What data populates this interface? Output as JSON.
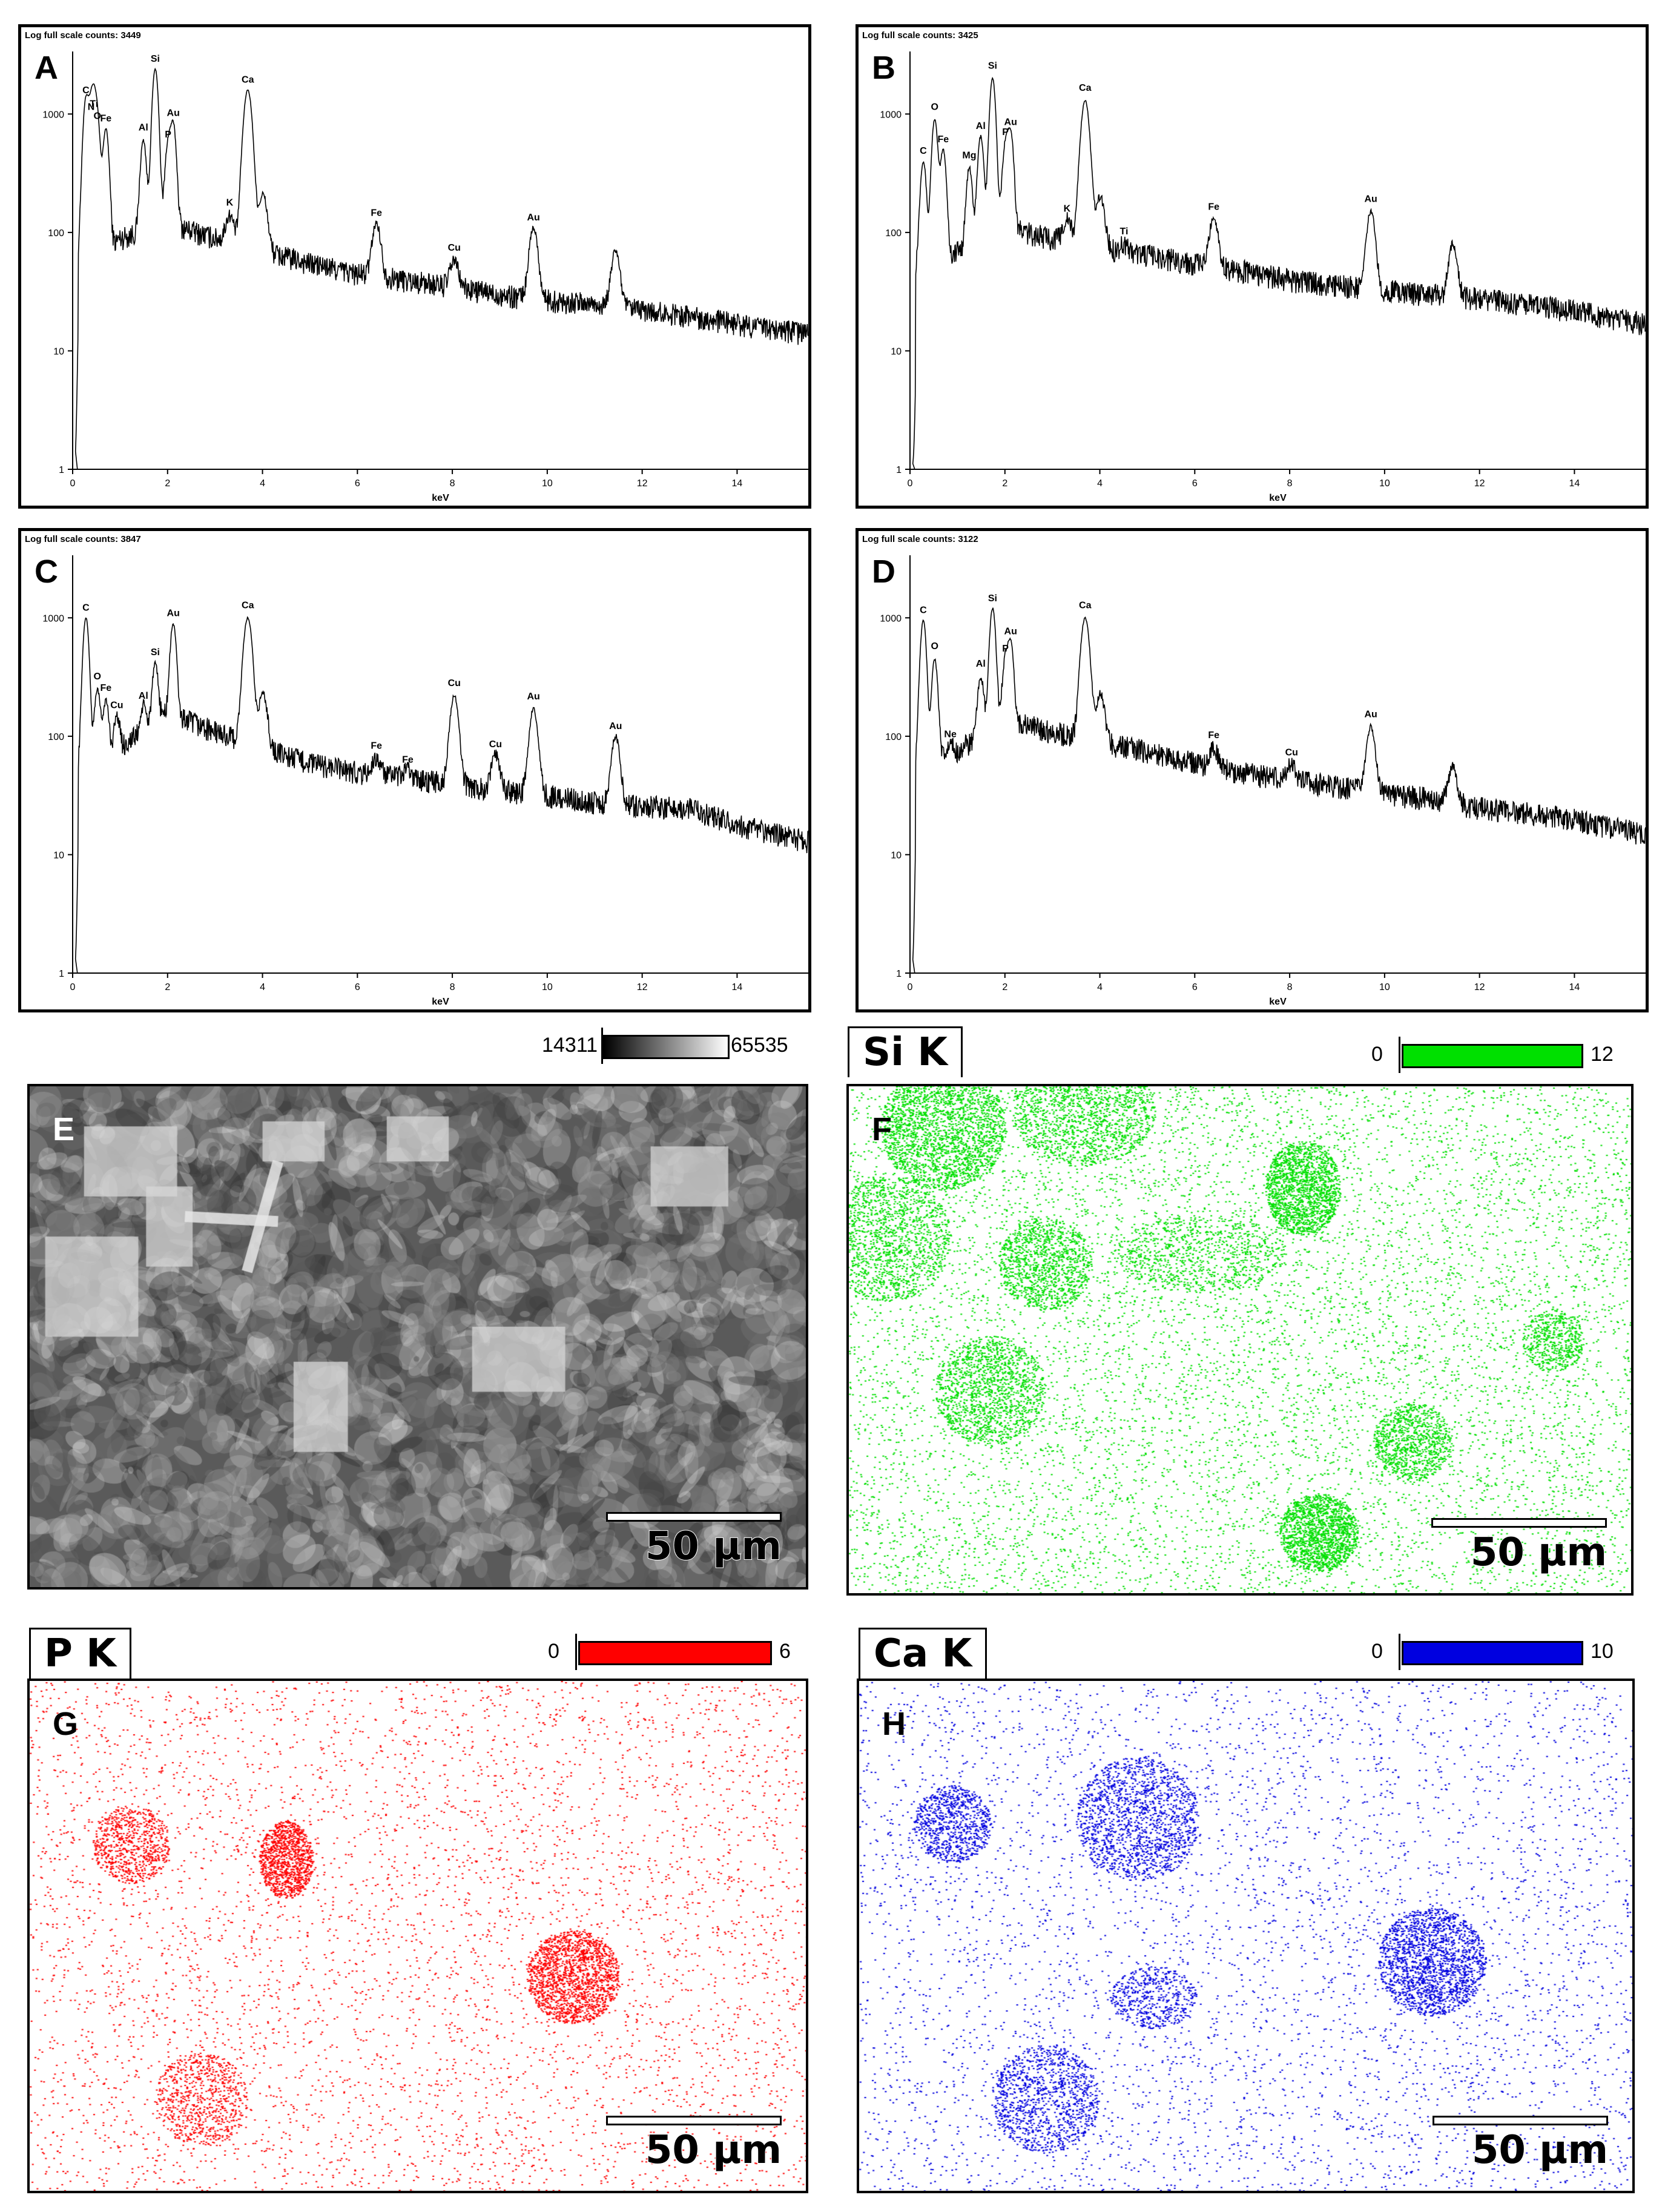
{
  "spectra": {
    "axis_header": "Log full scale counts:",
    "xlabel": "keV",
    "y_ticks": [
      "1",
      "10",
      "100",
      "1000"
    ],
    "x_ticks": [
      "0",
      "2",
      "4",
      "6",
      "8",
      "10",
      "12",
      "14"
    ]
  },
  "chart_data": [
    {
      "type": "line",
      "panel": "A",
      "title": "Log full scale counts: 3449",
      "xlabel": "keV",
      "ylabel": "",
      "y_scale": "log",
      "xlim": [
        0,
        15.5
      ],
      "ylim": [
        1,
        3449
      ],
      "baseline": [
        [
          0.5,
          60
        ],
        [
          1,
          90
        ],
        [
          2,
          120
        ],
        [
          3,
          90
        ],
        [
          4,
          70
        ],
        [
          5,
          55
        ],
        [
          6,
          45
        ],
        [
          7,
          40
        ],
        [
          8,
          35
        ],
        [
          9,
          30
        ],
        [
          10,
          27
        ],
        [
          11,
          25
        ],
        [
          12,
          22
        ],
        [
          13,
          20
        ],
        [
          14,
          17
        ],
        [
          15.5,
          14
        ]
      ],
      "peaks": [
        {
          "label": "C",
          "x": 0.28,
          "y": 1300
        },
        {
          "label": "O",
          "x": 0.52,
          "y": 750
        },
        {
          "label": "Ti",
          "x": 0.45,
          "y": 1000
        },
        {
          "label": "N",
          "x": 0.39,
          "y": 900
        },
        {
          "label": "Fe",
          "x": 0.7,
          "y": 750
        },
        {
          "label": "Al",
          "x": 1.49,
          "y": 600
        },
        {
          "label": "Si",
          "x": 1.74,
          "y": 2400
        },
        {
          "label": "Au",
          "x": 2.12,
          "y": 800
        },
        {
          "label": "P",
          "x": 2.01,
          "y": 550
        },
        {
          "label": "K",
          "x": 3.31,
          "y": 140
        },
        {
          "label": "Ca",
          "x": 3.69,
          "y": 1600
        },
        {
          "label": "",
          "x": 4.01,
          "y": 210
        },
        {
          "label": "Fe",
          "x": 6.4,
          "y": 120
        },
        {
          "label": "Cu",
          "x": 8.04,
          "y": 58
        },
        {
          "label": "Au",
          "x": 9.71,
          "y": 110
        },
        {
          "label": "",
          "x": 11.44,
          "y": 70
        }
      ]
    },
    {
      "type": "line",
      "panel": "B",
      "title": "Log full scale counts: 3425",
      "xlabel": "keV",
      "ylabel": "",
      "y_scale": "log",
      "xlim": [
        0,
        15.5
      ],
      "ylim": [
        1,
        3425
      ],
      "baseline": [
        [
          0.5,
          50
        ],
        [
          1,
          70
        ],
        [
          2,
          110
        ],
        [
          3,
          90
        ],
        [
          4,
          75
        ],
        [
          5,
          65
        ],
        [
          6,
          55
        ],
        [
          7,
          48
        ],
        [
          8,
          40
        ],
        [
          9,
          36
        ],
        [
          10,
          33
        ],
        [
          11,
          30
        ],
        [
          12,
          28
        ],
        [
          13,
          25
        ],
        [
          14,
          22
        ],
        [
          15.5,
          17
        ]
      ],
      "peaks": [
        {
          "label": "C",
          "x": 0.28,
          "y": 400
        },
        {
          "label": "O",
          "x": 0.52,
          "y": 900
        },
        {
          "label": "Fe",
          "x": 0.7,
          "y": 500
        },
        {
          "label": "Mg",
          "x": 1.25,
          "y": 350
        },
        {
          "label": "Al",
          "x": 1.49,
          "y": 650
        },
        {
          "label": "Si",
          "x": 1.74,
          "y": 2000
        },
        {
          "label": "Au",
          "x": 2.12,
          "y": 700
        },
        {
          "label": "P",
          "x": 2.01,
          "y": 550
        },
        {
          "label": "K",
          "x": 3.31,
          "y": 130
        },
        {
          "label": "Ca",
          "x": 3.69,
          "y": 1300
        },
        {
          "label": "",
          "x": 4.01,
          "y": 200
        },
        {
          "label": "Ti",
          "x": 4.51,
          "y": 80
        },
        {
          "label": "Fe",
          "x": 6.4,
          "y": 135
        },
        {
          "label": "Au",
          "x": 9.71,
          "y": 150
        },
        {
          "label": "",
          "x": 11.44,
          "y": 80
        }
      ]
    },
    {
      "type": "line",
      "panel": "C",
      "title": "Log full scale counts: 3847",
      "xlabel": "keV",
      "ylabel": "",
      "y_scale": "log",
      "xlim": [
        0,
        15.5
      ],
      "ylim": [
        1,
        3847
      ],
      "baseline": [
        [
          0.5,
          50
        ],
        [
          1,
          80
        ],
        [
          2,
          160
        ],
        [
          3,
          110
        ],
        [
          4,
          80
        ],
        [
          5,
          60
        ],
        [
          6,
          50
        ],
        [
          7,
          45
        ],
        [
          8,
          40
        ],
        [
          9,
          35
        ],
        [
          10,
          32
        ],
        [
          11,
          28
        ],
        [
          12,
          26
        ],
        [
          13,
          25
        ],
        [
          14,
          18
        ],
        [
          15.5,
          13
        ]
      ],
      "peaks": [
        {
          "label": "C",
          "x": 0.28,
          "y": 1000
        },
        {
          "label": "O",
          "x": 0.52,
          "y": 250
        },
        {
          "label": "Cu",
          "x": 0.93,
          "y": 150
        },
        {
          "label": "Fe",
          "x": 0.7,
          "y": 200
        },
        {
          "label": "Al",
          "x": 1.49,
          "y": 180
        },
        {
          "label": "Si",
          "x": 1.74,
          "y": 400
        },
        {
          "label": "Au",
          "x": 2.12,
          "y": 900
        },
        {
          "label": "Ca",
          "x": 3.69,
          "y": 1000
        },
        {
          "label": "",
          "x": 4.01,
          "y": 230
        },
        {
          "label": "Fe",
          "x": 6.4,
          "y": 65
        },
        {
          "label": "Fe",
          "x": 7.06,
          "y": 52
        },
        {
          "label": "Cu",
          "x": 8.04,
          "y": 220
        },
        {
          "label": "Cu",
          "x": 8.91,
          "y": 70
        },
        {
          "label": "Au",
          "x": 9.71,
          "y": 170
        },
        {
          "label": "Au",
          "x": 11.44,
          "y": 100
        }
      ]
    },
    {
      "type": "line",
      "panel": "D",
      "title": "Log full scale counts: 3122",
      "xlabel": "keV",
      "ylabel": "",
      "y_scale": "log",
      "xlim": [
        0,
        15.5
      ],
      "ylim": [
        1,
        3122
      ],
      "baseline": [
        [
          0.5,
          60
        ],
        [
          1,
          75
        ],
        [
          2,
          140
        ],
        [
          3,
          110
        ],
        [
          4,
          90
        ],
        [
          5,
          75
        ],
        [
          6,
          60
        ],
        [
          7,
          50
        ],
        [
          8,
          43
        ],
        [
          9,
          38
        ],
        [
          10,
          33
        ],
        [
          11,
          30
        ],
        [
          12,
          25
        ],
        [
          13,
          23
        ],
        [
          14,
          20
        ],
        [
          15.5,
          15
        ]
      ],
      "peaks": [
        {
          "label": "C",
          "x": 0.28,
          "y": 950
        },
        {
          "label": "O",
          "x": 0.52,
          "y": 450
        },
        {
          "label": "Ne",
          "x": 0.85,
          "y": 85
        },
        {
          "label": "Al",
          "x": 1.49,
          "y": 320
        },
        {
          "label": "Si",
          "x": 1.74,
          "y": 1200
        },
        {
          "label": "Au",
          "x": 2.12,
          "y": 600
        },
        {
          "label": "P",
          "x": 2.01,
          "y": 450
        },
        {
          "label": "Ca",
          "x": 3.69,
          "y": 1000
        },
        {
          "label": "",
          "x": 4.01,
          "y": 230
        },
        {
          "label": "Fe",
          "x": 6.4,
          "y": 80
        },
        {
          "label": "Cu",
          "x": 8.04,
          "y": 60
        },
        {
          "label": "Au",
          "x": 9.71,
          "y": 120
        },
        {
          "label": "",
          "x": 11.44,
          "y": 55
        }
      ]
    }
  ],
  "maps": {
    "E": {
      "letter": "E",
      "scale_label": "50 µm",
      "legend_min": "14311",
      "legend_max": "65535"
    },
    "F": {
      "letter": "F",
      "title": "Si K",
      "scale_label": "50 µm",
      "legend_min": "0",
      "legend_max": "12",
      "color": "#00e000"
    },
    "G": {
      "letter": "G",
      "title": "P K",
      "scale_label": "50 µm",
      "legend_min": "0",
      "legend_max": "6",
      "color": "#ff0000"
    },
    "H": {
      "letter": "H",
      "title": "Ca K",
      "scale_label": "50 µm",
      "legend_min": "0",
      "legend_max": "10",
      "color": "#0000e0"
    }
  },
  "spectrum_labels": {
    "A": {
      "letter": "A",
      "counts": "3449"
    },
    "B": {
      "letter": "B",
      "counts": "3425"
    },
    "C": {
      "letter": "C",
      "counts": "3847"
    },
    "D": {
      "letter": "D",
      "counts": "3122"
    }
  }
}
